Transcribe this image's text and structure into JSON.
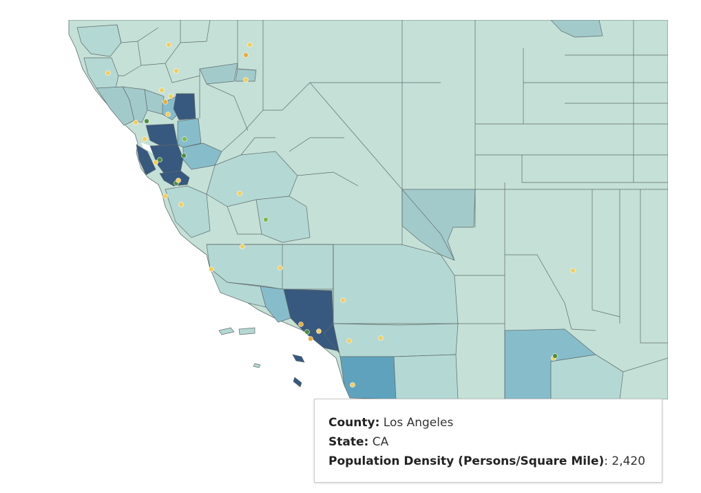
{
  "colors": {
    "background": "#ffffff",
    "land_base": "#c4e0d7",
    "border": "#5f6b6a",
    "density_low": "#c4e0d7",
    "density_lowmid": "#b4d8d4",
    "density_mid": "#a3cacb",
    "density_midhigh": "#87bccb",
    "density_high": "#5fa2bd",
    "density_max": "#37587f",
    "dot_yellow": "#f5cd5b",
    "dot_orange": "#e9ac3d",
    "dot_green": "#4f8f3a",
    "dot_lightgreen": "#7dba4f"
  },
  "tooltip": {
    "county_label": "County:",
    "county_value": "Los Angeles",
    "state_label": "State:",
    "state_value": "CA",
    "density_label": "Population Density (Persons/Square Mile)",
    "density_sep": ":",
    "density_value": "2,420"
  }
}
